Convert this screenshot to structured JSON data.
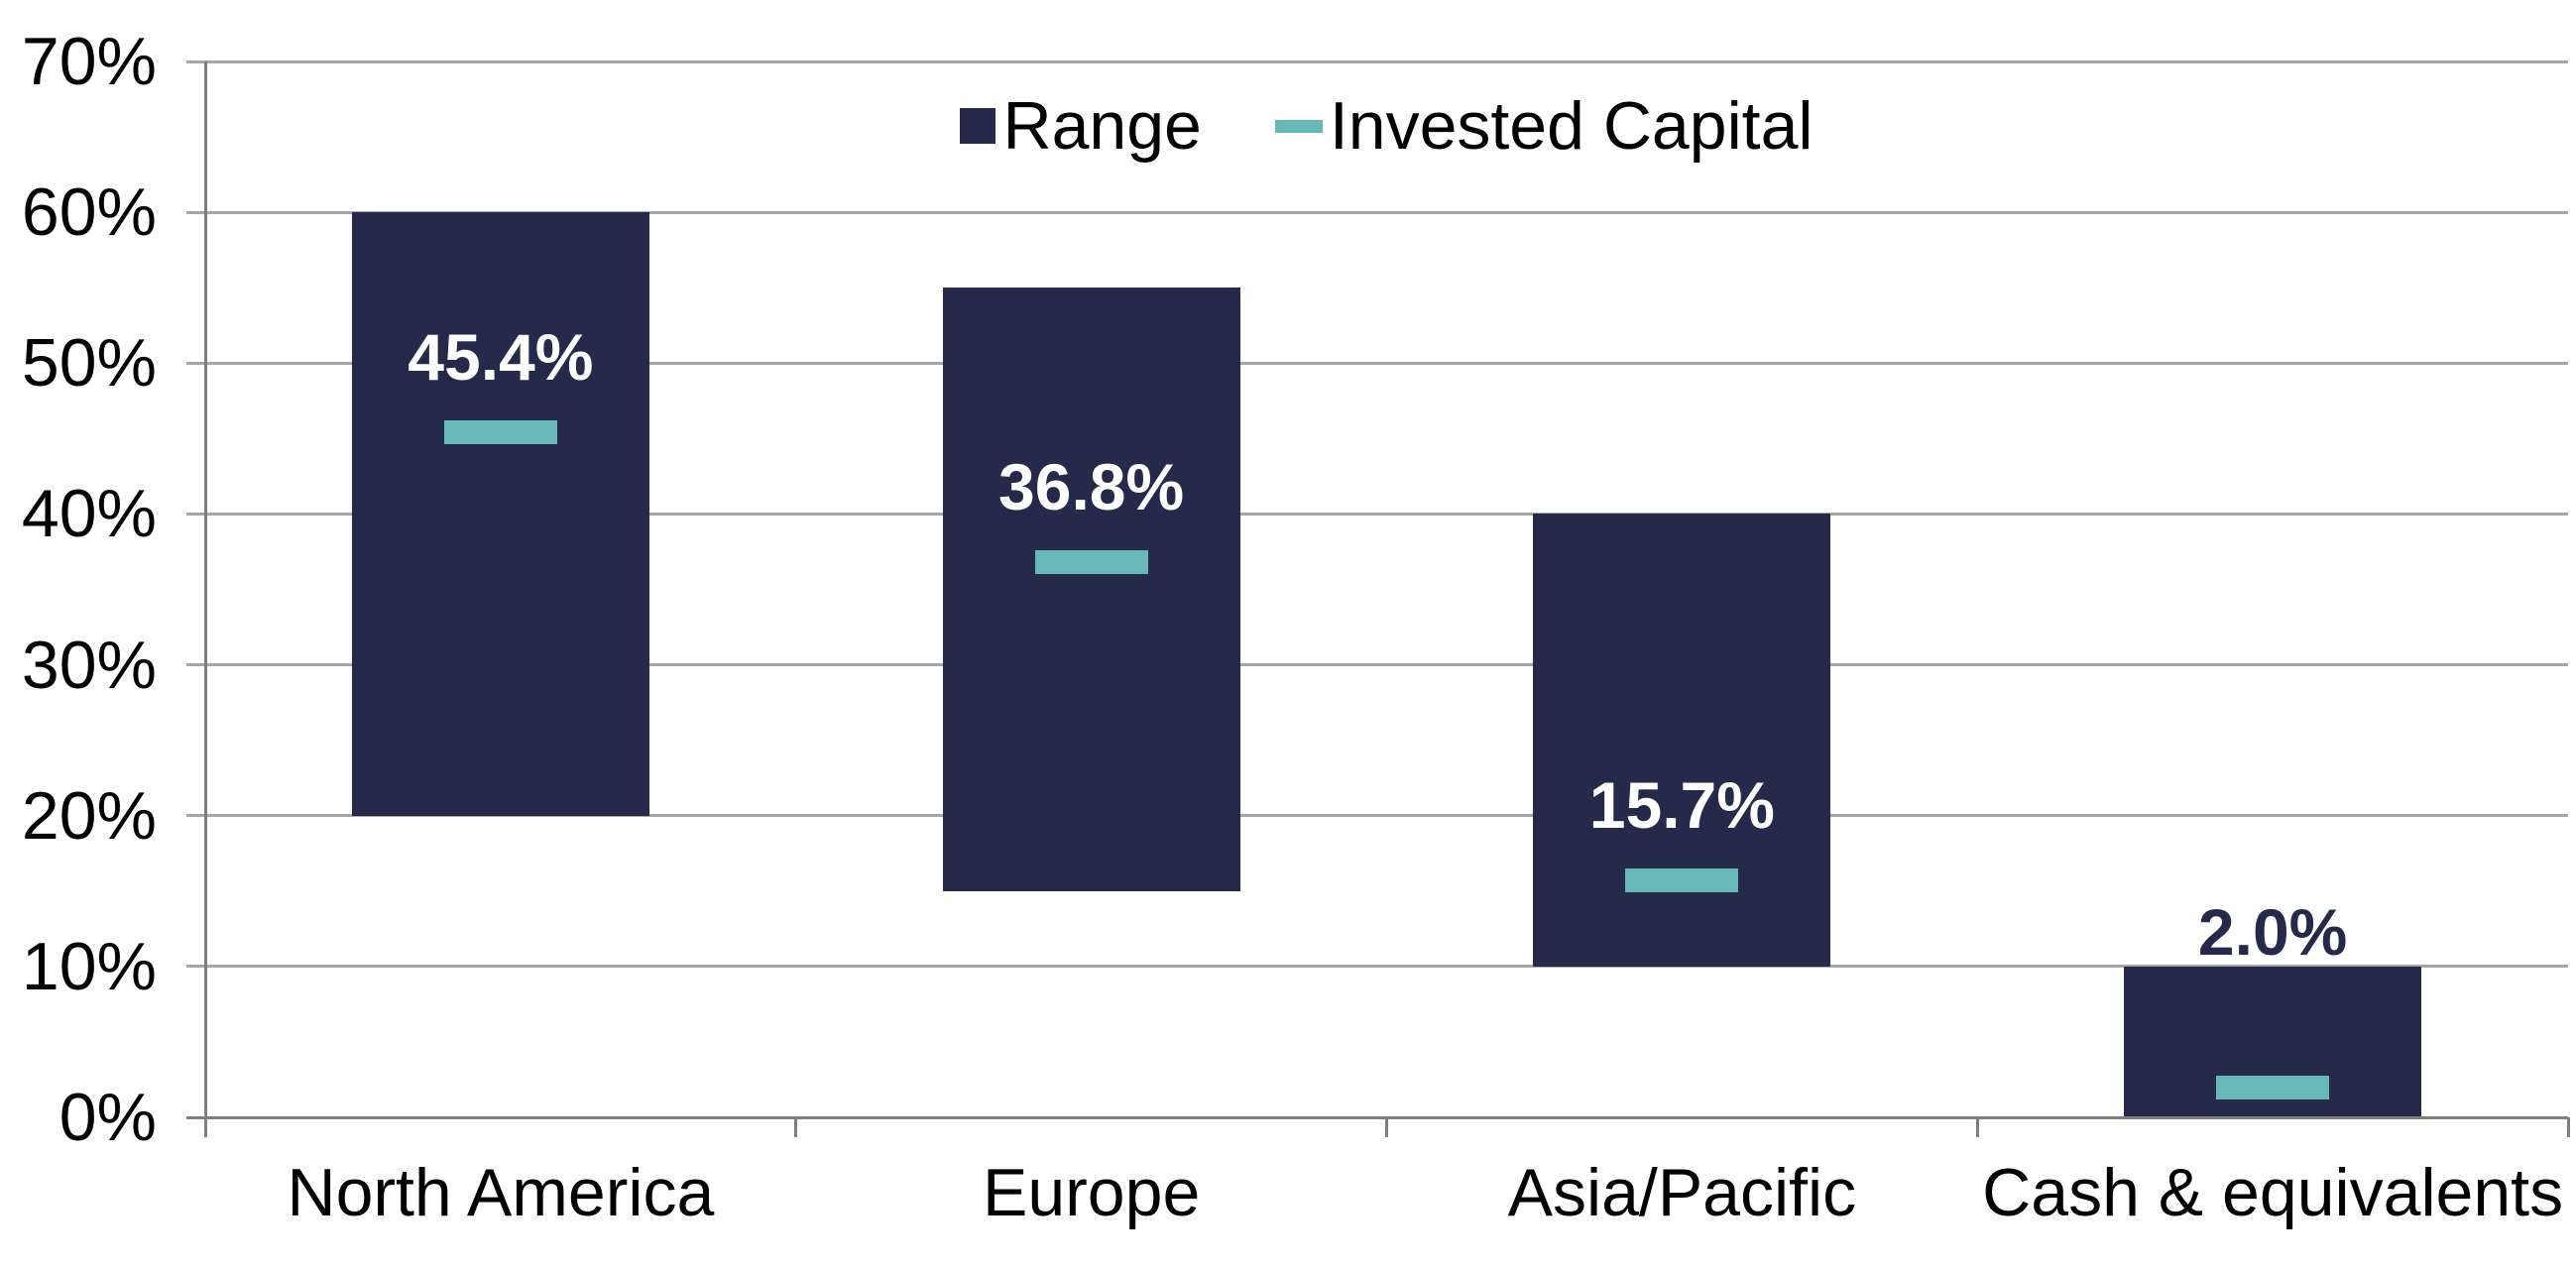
{
  "chart_data": {
    "type": "bar",
    "variant": "floating-range-with-markers",
    "categories": [
      "North America",
      "Europe",
      "Asia/Pacific",
      "Cash & equivalents"
    ],
    "series": [
      {
        "name": "Range",
        "marker": "square",
        "color": "#262a4a",
        "low": [
          20,
          15,
          10,
          0
        ],
        "high": [
          60,
          55,
          40,
          10
        ]
      },
      {
        "name": "Invested Capital",
        "marker": "dash",
        "color": "#68b7b9",
        "values": [
          45.4,
          36.8,
          15.7,
          2.0
        ],
        "labels": [
          "45.4%",
          "36.8%",
          "15.7%",
          "2.0%"
        ],
        "label_inside_bar": [
          true,
          true,
          true,
          false
        ]
      }
    ],
    "ylim": [
      0,
      70
    ],
    "y_ticks": [
      {
        "value": 70,
        "label": "70%"
      },
      {
        "value": 60,
        "label": "60%"
      },
      {
        "value": 50,
        "label": "50%"
      },
      {
        "value": 40,
        "label": "40%"
      },
      {
        "value": 30,
        "label": "30%"
      },
      {
        "value": 20,
        "label": "20%"
      },
      {
        "value": 10,
        "label": "10%"
      },
      {
        "value": 0,
        "label": "0%"
      }
    ],
    "grid": true,
    "legend_position": "top-center"
  },
  "colors": {
    "bar_navy": "#262a4a",
    "marker_teal": "#68b7b9",
    "gridline": "#a6a6a6",
    "axis": "#7f7f7f",
    "label_inside": "#ffffff",
    "label_outside": "#262a4a",
    "background": "#ffffff"
  }
}
